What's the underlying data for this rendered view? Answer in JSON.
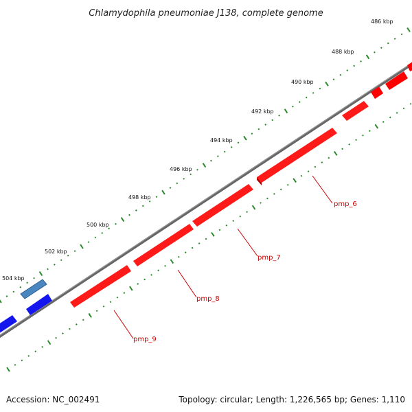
{
  "title": "Chlamydophila pneumoniae J138, complete genome",
  "footer": {
    "accession": "Accession: NC_002491",
    "summary": "Topology: circular; Length: 1,226,565 bp; Genes: 1,110"
  },
  "colors": {
    "background": "#ffffff",
    "backbone": "#777777",
    "tick": "#2a8a2a",
    "gene_forward": "#1010ee",
    "gene_reverse": "#ff0000",
    "gene_other": "#4a7fb0",
    "label": "#cc0000"
  },
  "scale": {
    "unit": "kbp",
    "tick_labels": [
      "486 kbp",
      "488 kbp",
      "490 kbp",
      "492 kbp",
      "494 kbp",
      "496 kbp",
      "498 kbp",
      "500 kbp",
      "502 kbp",
      "504 kbp"
    ]
  },
  "genes": [
    {
      "label": "pmp_6",
      "strand": "reverse"
    },
    {
      "label": "pmp_7",
      "strand": "reverse"
    },
    {
      "label": "pmp_8",
      "strand": "reverse"
    },
    {
      "label": "pmp_9",
      "strand": "reverse"
    }
  ]
}
